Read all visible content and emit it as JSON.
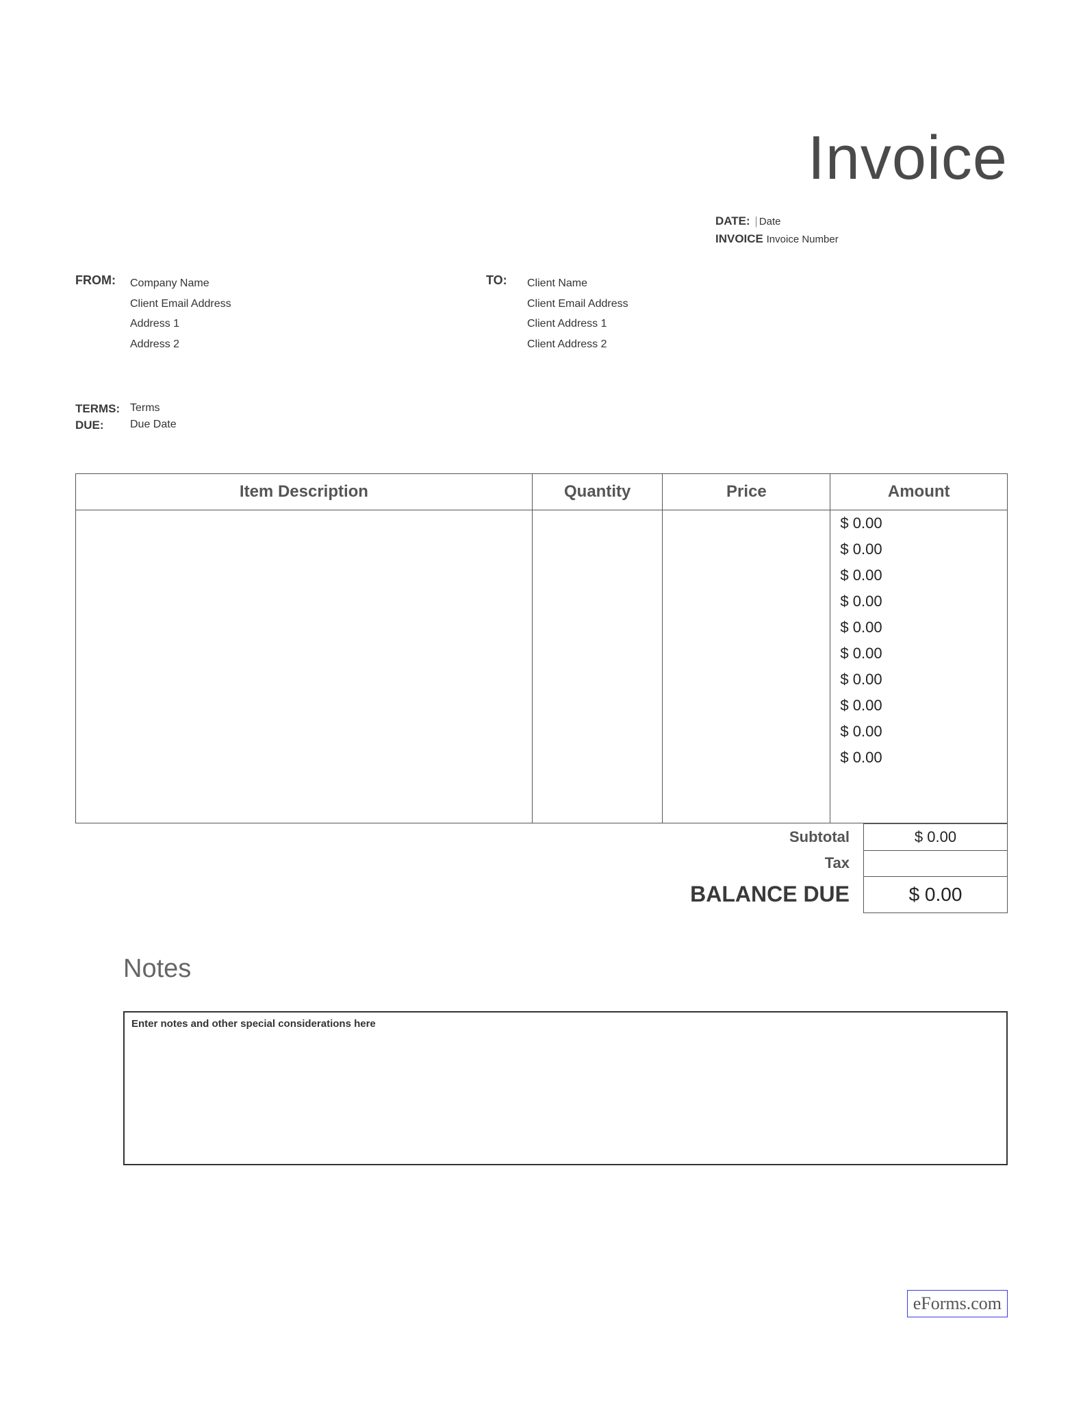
{
  "title": "Invoice",
  "meta": {
    "date_label": "DATE:",
    "date_value": "Date",
    "invoice_label": "INVOICE",
    "invoice_value": "Invoice Number"
  },
  "from": {
    "label": "FROM:",
    "company": "Company Name",
    "email": "Client Email Address",
    "address1": "Address 1",
    "address2": "Address 2"
  },
  "to": {
    "label": "TO:",
    "name": "Client Name",
    "email": "Client Email Address",
    "address1": "Client Address 1",
    "address2": "Client Address 2"
  },
  "terms": {
    "terms_label": "TERMS:",
    "terms_value": "Terms",
    "due_label": "DUE:",
    "due_value": "Due Date"
  },
  "table": {
    "columns": [
      "Item Description",
      "Quantity",
      "Price",
      "Amount"
    ],
    "rows": [
      {
        "amount": "$ 0.00"
      },
      {
        "amount": "$ 0.00"
      },
      {
        "amount": "$ 0.00"
      },
      {
        "amount": "$ 0.00"
      },
      {
        "amount": "$ 0.00"
      },
      {
        "amount": "$ 0.00"
      },
      {
        "amount": "$ 0.00"
      },
      {
        "amount": "$ 0.00"
      },
      {
        "amount": "$ 0.00"
      },
      {
        "amount": "$ 0.00"
      }
    ]
  },
  "totals": {
    "subtotal_label": "Subtotal",
    "subtotal_value": "$ 0.00",
    "tax_label": "Tax",
    "balance_label": "BALANCE DUE",
    "balance_value": "$ 0.00"
  },
  "notes": {
    "title": "Notes",
    "placeholder": "Enter notes and other special considerations here"
  },
  "footer": {
    "link": "eForms.com"
  },
  "colors": {
    "title_color": "#4a4a4a",
    "label_color": "#3a3a3a",
    "text_color": "#333333",
    "border_color": "#555555",
    "link_border": "#3a3ae8",
    "background": "#ffffff"
  }
}
